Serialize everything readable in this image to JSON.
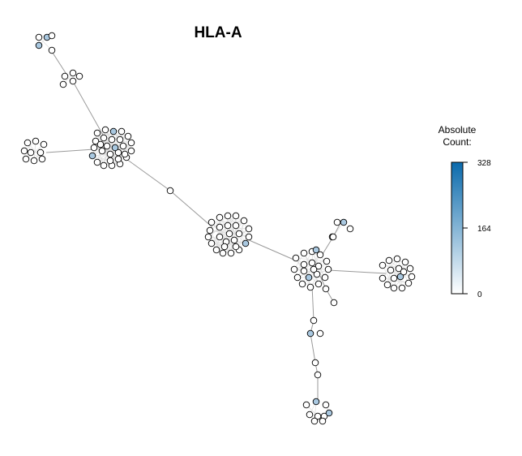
{
  "title": "HLA-A",
  "legend": {
    "title_line1": "Absolute",
    "title_line2": "Count:",
    "max_label": "328",
    "mid_label": "164",
    "min_label": "0",
    "max_value": 328,
    "color_low": "#ffffff",
    "color_high": "#0a6aac"
  },
  "colors": {
    "node_default": "#ffffff",
    "node_highlight": "#a9c8e0",
    "node_stroke": "#000000",
    "edge": "#9a9a9a",
    "intra_edge": "#dddddd"
  }
}
